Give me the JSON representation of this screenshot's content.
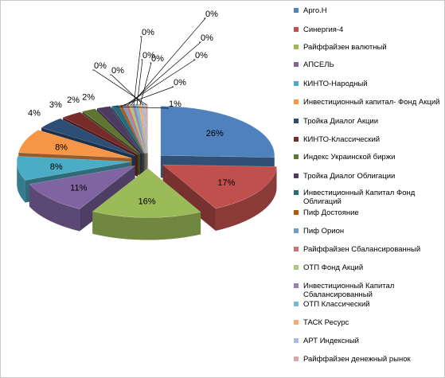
{
  "chart_data": {
    "type": "pie",
    "style": "3d-exploded",
    "legend_position": "right",
    "series": [
      {
        "name": "Арго.Н",
        "value": 26,
        "label": "26%",
        "color": "#4f81bd"
      },
      {
        "name": "Синергия-4",
        "value": 17,
        "label": "17%",
        "color": "#c0504d"
      },
      {
        "name": "Райффайзен валютный",
        "value": 16,
        "label": "16%",
        "color": "#9bbb59"
      },
      {
        "name": "АПСЕЛЬ",
        "value": 11,
        "label": "11%",
        "color": "#8064a2"
      },
      {
        "name": "КИНТО-Народный",
        "value": 8,
        "label": "8%",
        "color": "#4bacc6"
      },
      {
        "name": "Инвестиционный капитал- Фонд Акций",
        "value": 8,
        "label": "8%",
        "color": "#f79646"
      },
      {
        "name": "Тройка Диалог Акции",
        "value": 4,
        "label": "4%",
        "color": "#2c4d75"
      },
      {
        "name": "КИНТО-Классический",
        "value": 3,
        "label": "3%",
        "color": "#772c2a"
      },
      {
        "name": "Индекс Украинской биржи",
        "value": 2,
        "label": "2%",
        "color": "#5f7530"
      },
      {
        "name": "Тройка Диалог Облигации",
        "value": 2,
        "label": "2%",
        "color": "#4d3b62"
      },
      {
        "name": "Инвестиционный Капитал Фонд Облигаций",
        "value": 1,
        "label": "1%",
        "color": "#276a7c"
      },
      {
        "name": "Пиф Достояние",
        "value": 0.4,
        "label": "0%",
        "color": "#b65708"
      },
      {
        "name": "Пиф Орион",
        "value": 0.4,
        "label": "0%",
        "color": "#729aca"
      },
      {
        "name": "Райффайзен Сбалансированный",
        "value": 0.4,
        "label": "0%",
        "color": "#cd7371"
      },
      {
        "name": "ОТП Фонд Акций",
        "value": 0.4,
        "label": "0%",
        "color": "#afc97a"
      },
      {
        "name": "Инвестиционный Капитал Сбалансированный",
        "value": 0.4,
        "label": "0%",
        "color": "#9983b5"
      },
      {
        "name": "ОТП Классический",
        "value": 0.4,
        "label": "0%",
        "color": "#6fbdd1"
      },
      {
        "name": "ТАСК Ресурс",
        "value": 0.4,
        "label": "0%",
        "color": "#f9ab6b"
      },
      {
        "name": "АРТ Индексный",
        "value": 0.4,
        "label": "0%",
        "color": "#a9bcd9"
      },
      {
        "name": "Райффайзен денежный рынок",
        "value": 0.4,
        "label": "0%",
        "color": "#d9a9a8"
      }
    ]
  }
}
